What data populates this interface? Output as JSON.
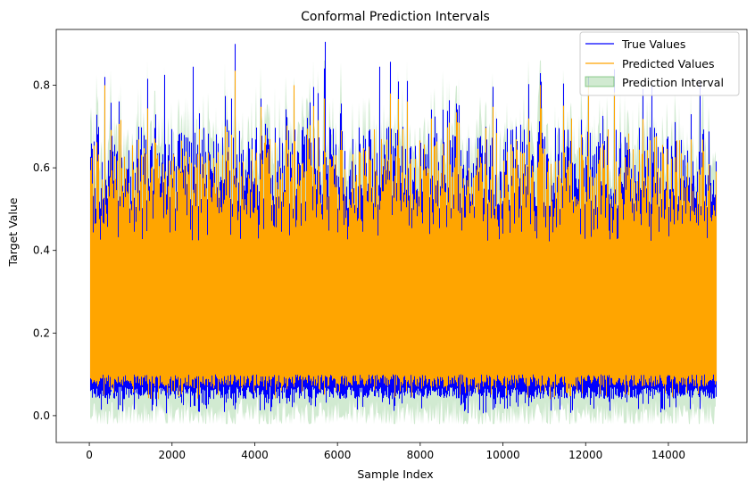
{
  "chart_data": {
    "type": "line",
    "title": "Conformal Prediction Intervals",
    "xlabel": "Sample Index",
    "ylabel": "Target Value",
    "xlim": [
      -800,
      15900
    ],
    "ylim": [
      -0.065,
      0.935
    ],
    "xticks": [
      0,
      2000,
      4000,
      6000,
      8000,
      10000,
      12000,
      14000
    ],
    "yticks": [
      0.0,
      0.2,
      0.4,
      0.6,
      0.8
    ],
    "x_range": [
      0,
      15150
    ],
    "grid": false,
    "legend_position": "top-right",
    "series": [
      {
        "name": "True Values",
        "color": "#0000ff",
        "style": "line",
        "typical_min": 0.05,
        "typical_max": 0.62,
        "peaks": [
          {
            "x": 3520,
            "y": 0.9
          },
          {
            "x": 5700,
            "y": 0.905
          },
          {
            "x": 2510,
            "y": 0.845
          },
          {
            "x": 7020,
            "y": 0.845
          },
          {
            "x": 1800,
            "y": 0.825
          },
          {
            "x": 370,
            "y": 0.82
          },
          {
            "x": 12060,
            "y": 0.82
          },
          {
            "x": 13600,
            "y": 0.8
          },
          {
            "x": 14760,
            "y": 0.81
          }
        ]
      },
      {
        "name": "Predicted Values",
        "color": "#ffa500",
        "style": "line",
        "typical_min": 0.07,
        "typical_max": 0.55,
        "peaks": [
          {
            "x": 3520,
            "y": 0.835
          },
          {
            "x": 4950,
            "y": 0.8
          },
          {
            "x": 370,
            "y": 0.8
          },
          {
            "x": 12060,
            "y": 0.8
          }
        ]
      },
      {
        "name": "Prediction Interval",
        "color": "#2ca02c",
        "style": "band",
        "opacity": 0.22,
        "lower_min": -0.02,
        "upper_max": 0.86
      }
    ]
  }
}
